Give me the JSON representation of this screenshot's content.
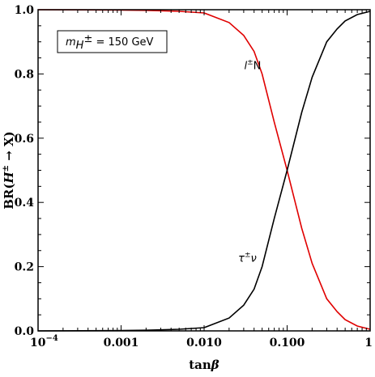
{
  "chart_data": {
    "type": "line",
    "x_scale": "log",
    "xlim": [
      0.0001,
      1
    ],
    "ylim": [
      0,
      1
    ],
    "grid": false,
    "xlabel": {
      "main": "tan",
      "sym": "β"
    },
    "ylabel": {
      "prefix": "BR(",
      "H": "H",
      "pm": "±",
      "arrow": " → X)"
    },
    "x_ticks": [
      {
        "value": 0.0001,
        "base": "10",
        "exp": "−4"
      },
      {
        "value": 0.001,
        "label": "0.001"
      },
      {
        "value": 0.01,
        "label": "0.010"
      },
      {
        "value": 0.1,
        "label": "0.100"
      },
      {
        "value": 1,
        "label": "1"
      }
    ],
    "y_ticks": [
      {
        "value": 0,
        "label": "0.0"
      },
      {
        "value": 0.2,
        "label": "0.2"
      },
      {
        "value": 0.4,
        "label": "0.4"
      },
      {
        "value": 0.6,
        "label": "0.6"
      },
      {
        "value": 0.8,
        "label": "0.8"
      },
      {
        "value": 1,
        "label": "1.0"
      }
    ],
    "annotation_box": {
      "m": "m",
      "sub": "H",
      "sup": "±",
      "text": " = 150 GeV"
    },
    "series": [
      {
        "color": "#e00000",
        "label": {
          "l": "l",
          "sup": "±",
          "rest": "N"
        },
        "label_pos": {
          "x": 0.14,
          "y": 0.8
        },
        "x": [
          0.0001,
          0.001,
          0.002,
          0.005,
          0.01,
          0.02,
          0.03,
          0.04,
          0.05,
          0.07,
          0.1,
          0.15,
          0.2,
          0.3,
          0.4,
          0.5,
          0.7,
          1
        ],
        "y": [
          1.0,
          0.999,
          0.998,
          0.995,
          0.99,
          0.96,
          0.92,
          0.87,
          0.8,
          0.65,
          0.5,
          0.32,
          0.21,
          0.1,
          0.06,
          0.035,
          0.015,
          0.005
        ]
      },
      {
        "color": "#000000",
        "label": {
          "l": "τ",
          "sup": "±",
          "rest": "ν"
        },
        "label_pos": {
          "x": 0.13,
          "y": 0.2
        },
        "x": [
          0.0001,
          0.001,
          0.002,
          0.005,
          0.01,
          0.02,
          0.03,
          0.04,
          0.05,
          0.07,
          0.1,
          0.15,
          0.2,
          0.3,
          0.4,
          0.5,
          0.7,
          1
        ],
        "y": [
          0.0,
          0.001,
          0.002,
          0.005,
          0.01,
          0.04,
          0.08,
          0.13,
          0.2,
          0.35,
          0.5,
          0.68,
          0.79,
          0.9,
          0.94,
          0.965,
          0.985,
          0.995
        ]
      }
    ]
  }
}
